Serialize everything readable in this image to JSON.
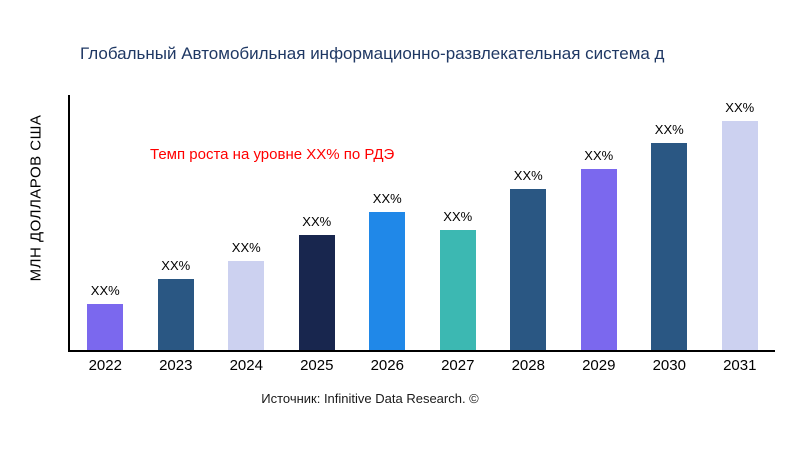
{
  "title": "Глобальный Автомобильная информационно-развлекательная система д",
  "annotation": "Темп роста на уровне XX% по РДЭ",
  "source": "Источник: Infinitive Data Research. ©",
  "colors": {
    "title": "#1f3864",
    "annotation": "#ff0000",
    "axis": "#000000"
  },
  "chart_data": {
    "type": "bar",
    "title": "Глобальный Автомобильная информационно-развлекательная система д",
    "xlabel": "",
    "ylabel": "МЛН ДОЛЛАРОВ США",
    "categories": [
      "2022",
      "2023",
      "2024",
      "2025",
      "2026",
      "2027",
      "2028",
      "2029",
      "2030",
      "2031"
    ],
    "values": [
      18,
      28,
      35,
      45,
      54,
      47,
      63,
      71,
      81,
      90
    ],
    "bar_labels": [
      "XX%",
      "XX%",
      "XX%",
      "XX%",
      "XX%",
      "XX%",
      "XX%",
      "XX%",
      "XX%",
      "XX%"
    ],
    "bar_colors": [
      "#7b68ee",
      "#2a5783",
      "#ccd1f0",
      "#18264e",
      "#2088e8",
      "#3cb8b2",
      "#2a5783",
      "#7b68ee",
      "#2a5783",
      "#ccd1f0"
    ],
    "ylim": [
      0,
      100
    ],
    "grid": false,
    "legend": false,
    "annotation": "Темп роста на уровне XX% по РДЭ",
    "value_note": "Values are masked as XX% in the source image; numeric values are estimated relative bar heights (0-100 scale)."
  }
}
